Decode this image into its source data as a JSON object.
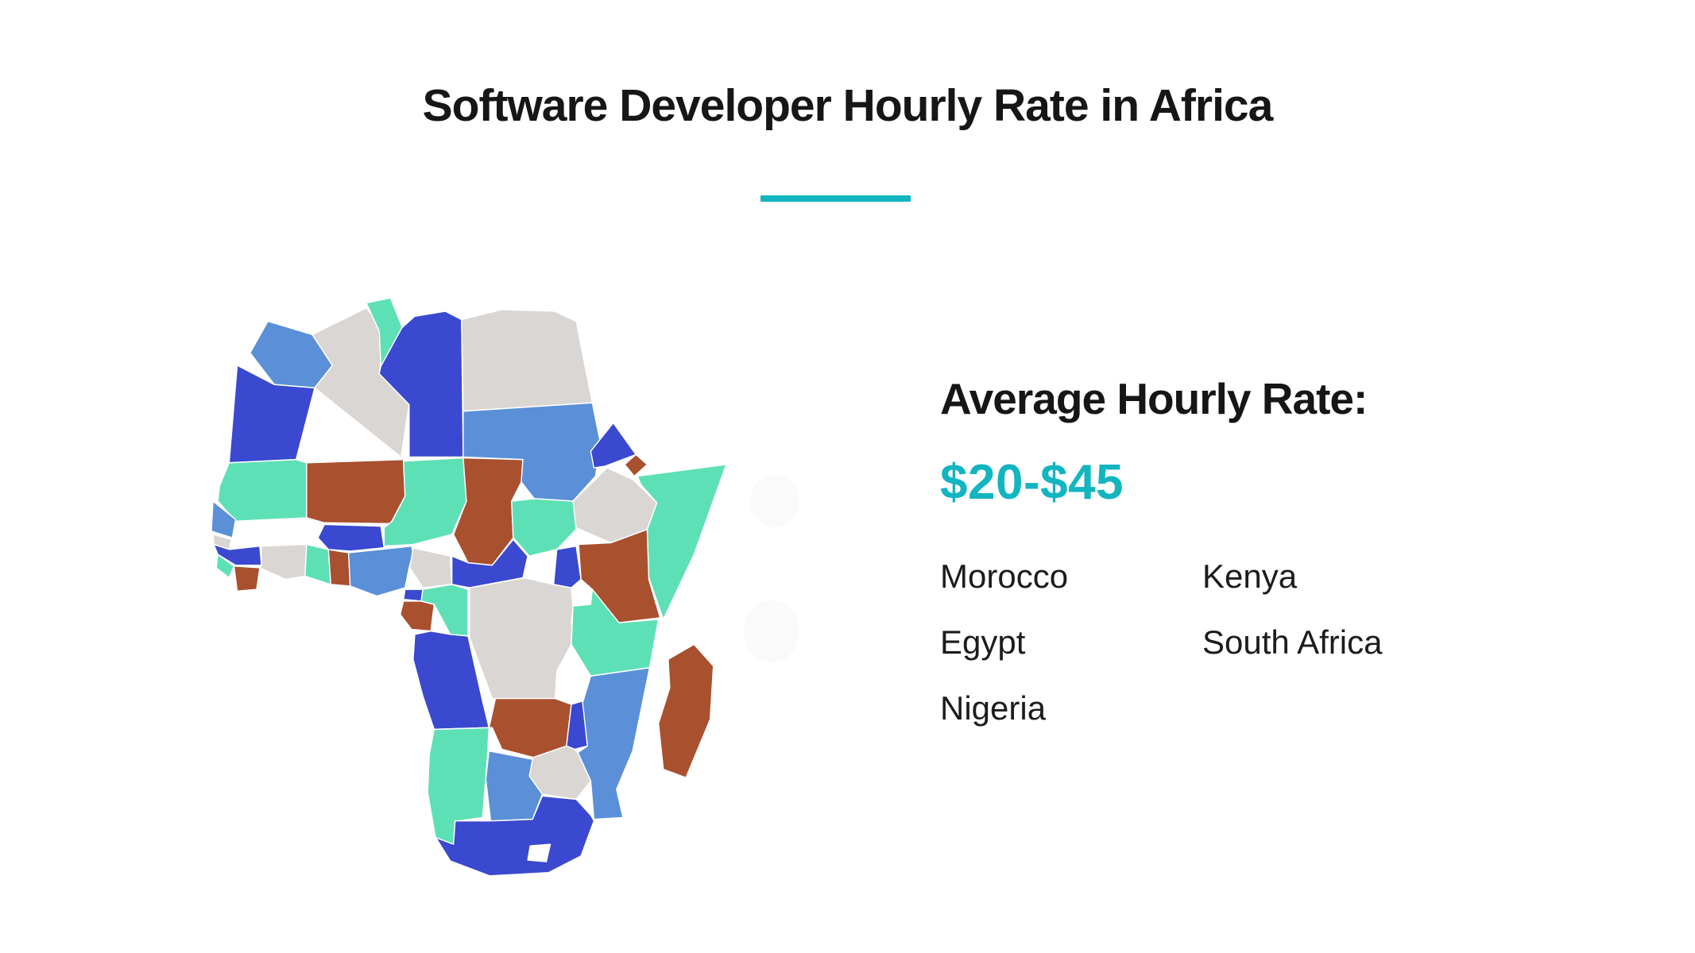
{
  "theme": {
    "accent": "#12b5c0",
    "text_primary": "#161616",
    "background": "#ffffff"
  },
  "title": {
    "text": "Software Developer Hourly Rate in Africa"
  },
  "rate_panel": {
    "heading": "Average Hourly Rate:",
    "rate": "$20-$45",
    "countries_column1": [
      "Morocco",
      "Egypt",
      "Nigeria"
    ],
    "countries_column2": [
      "Kenya",
      "South Africa"
    ]
  },
  "map": {
    "palette": {
      "royal_blue": "#3a49cf",
      "cornflower_blue": "#5b90d8",
      "mint_green": "#5ee0b6",
      "light_gray": "#d9d6d3",
      "rust_red": "#a9502f",
      "water_gap": "#ffffff"
    }
  },
  "chart_data": {
    "type": "choropleth-map",
    "title": "Software Developer Hourly Rate in Africa",
    "region": "Africa",
    "average_hourly_rate_label": "Average Hourly Rate:",
    "average_hourly_rate": "$20-$45",
    "rate_min_usd": 20,
    "rate_max_usd": 45,
    "listed_countries": [
      "Morocco",
      "Egypt",
      "Nigeria",
      "Kenya",
      "South Africa"
    ],
    "legend_position": "none",
    "map_fill_colors": [
      "#3a49cf",
      "#5b90d8",
      "#5ee0b6",
      "#d9d6d3",
      "#a9502f"
    ]
  }
}
